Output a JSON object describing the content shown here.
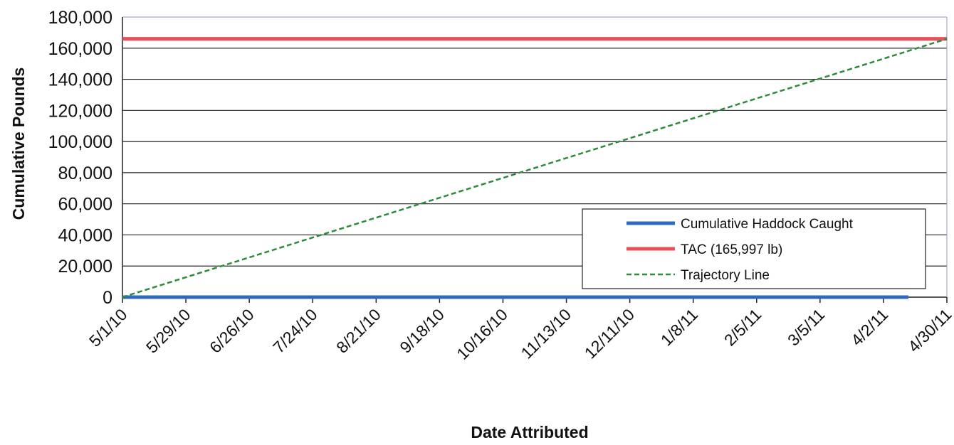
{
  "chart_data": {
    "type": "line",
    "title": "",
    "xlabel": "Date Attributed",
    "ylabel": "Cumulative Pounds",
    "ylim": [
      0,
      180000
    ],
    "yticks": [
      0,
      20000,
      40000,
      60000,
      80000,
      100000,
      120000,
      140000,
      160000,
      180000
    ],
    "ytick_labels": [
      "0",
      "20,000",
      "40,000",
      "60,000",
      "80,000",
      "100,000",
      "120,000",
      "140,000",
      "160,000",
      "180,000"
    ],
    "xlim": [
      "5/1/10",
      "4/30/11"
    ],
    "xtick_labels": [
      "5/1/10",
      "5/29/10",
      "6/26/10",
      "7/24/10",
      "8/21/10",
      "9/18/10",
      "10/16/10",
      "11/13/10",
      "12/11/10",
      "1/8/11",
      "2/5/11",
      "3/5/11",
      "4/2/11",
      "4/30/11"
    ],
    "grid": true,
    "legend_position": "lower-right",
    "series": [
      {
        "name": "Cumulative Haddock Caught",
        "color": "#2e6bbf",
        "style": "solid",
        "x": [
          "5/1/10",
          "4/13/11"
        ],
        "y": [
          0,
          0
        ]
      },
      {
        "name": "TAC (165,997 lb)",
        "color": "#e8505b",
        "style": "solid",
        "x": [
          "5/1/10",
          "4/30/11"
        ],
        "y": [
          165997,
          165997
        ]
      },
      {
        "name": "Trajectory Line",
        "color": "#2e8b3a",
        "style": "dashed",
        "x": [
          "5/1/10",
          "4/30/11"
        ],
        "y": [
          0,
          165997
        ]
      }
    ]
  }
}
